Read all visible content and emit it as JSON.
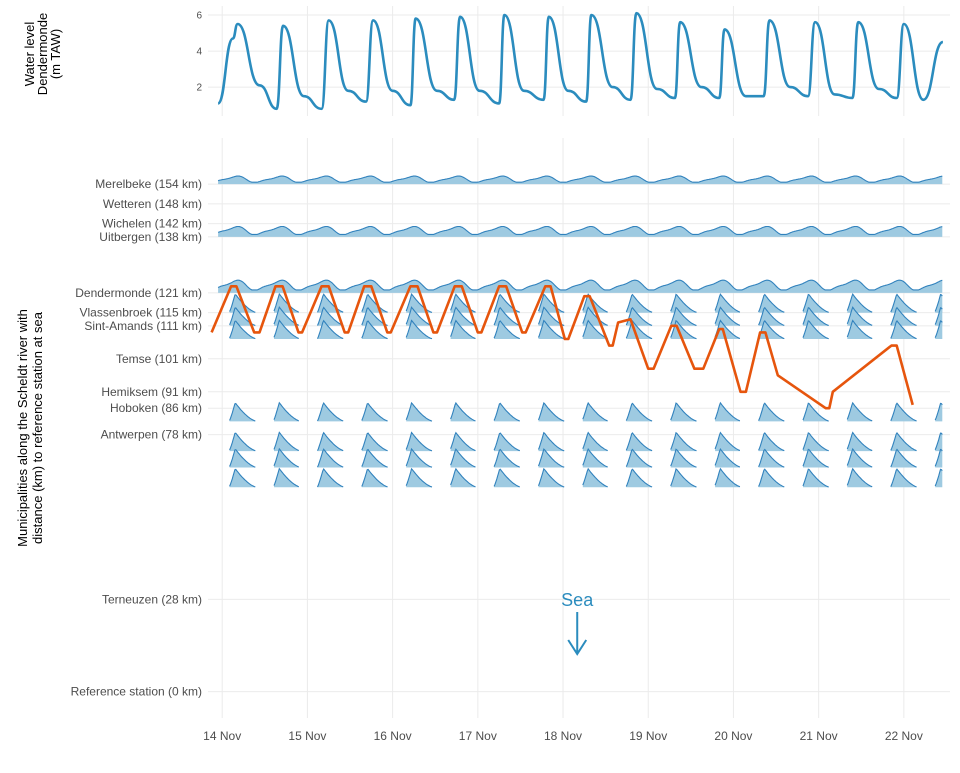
{
  "chart_data": [
    {
      "type": "line",
      "ylabel_lines": [
        "Water level",
        "Dendermonde",
        "(m TAW)"
      ],
      "ylim": [
        0.4,
        6.5
      ],
      "yticks": [
        "2",
        "4",
        "6"
      ],
      "ytick_values": [
        2,
        4,
        6
      ],
      "grid": true,
      "series": [
        {
          "color": "#2b8cbe",
          "x": [
            "13 Nov 22:50",
            "14 Nov 03:00",
            "14 Nov 04:20",
            "14 Nov 10:30",
            "14 Nov 15:20",
            "14 Nov 17:10",
            "14 Nov 23:00",
            "15 Nov 04:00",
            "15 Nov 06:00",
            "15 Nov 11:30",
            "15 Nov 16:30",
            "15 Nov 18:30",
            "16 Nov 00:00",
            "16 Nov 05:00",
            "16 Nov 06:30",
            "16 Nov 12:30",
            "16 Nov 17:20",
            "16 Nov 19:00",
            "17 Nov 00:30",
            "17 Nov 06:00",
            "17 Nov 07:30",
            "17 Nov 13:00",
            "17 Nov 18:30",
            "17 Nov 20:00",
            "18 Nov 01:30",
            "18 Nov 06:30",
            "18 Nov 08:00",
            "18 Nov 14:00",
            "18 Nov 19:00",
            "18 Nov 20:40",
            "19 Nov 02:30",
            "19 Nov 07:30",
            "19 Nov 09:00",
            "19 Nov 15:00",
            "19 Nov 20:00",
            "19 Nov 21:30",
            "20 Nov 03:30",
            "20 Nov 08:30",
            "20 Nov 10:10",
            "20 Nov 16:00",
            "20 Nov 21:00",
            "20 Nov 23:00",
            "21 Nov 04:30",
            "21 Nov 09:30",
            "21 Nov 11:10",
            "21 Nov 17:00",
            "21 Nov 22:00",
            "22 Nov 00:00",
            "22 Nov 05:30",
            "22 Nov 11:00"
          ],
          "y": [
            1.1,
            4.7,
            5.5,
            2.1,
            0.8,
            5.4,
            1.5,
            0.8,
            5.7,
            1.8,
            1.2,
            5.7,
            1.8,
            1.0,
            5.8,
            1.8,
            1.3,
            5.9,
            1.8,
            1.1,
            6.0,
            1.8,
            1.3,
            5.9,
            1.8,
            1.2,
            6.0,
            2.0,
            1.3,
            6.1,
            1.9,
            1.4,
            5.6,
            2.0,
            1.4,
            5.2,
            1.5,
            1.5,
            5.7,
            2.0,
            1.5,
            5.6,
            1.6,
            1.4,
            5.6,
            1.9,
            1.4,
            5.5,
            1.3,
            4.5
          ]
        }
      ]
    },
    {
      "type": "area",
      "ylabel_lines": [
        "Municipalities along the Scheldt river with",
        "distance (km) to reference station at sea"
      ],
      "ylim": [
        -8,
        168
      ],
      "x_range": [
        "13 Nov 20:00",
        "22 Nov 13:00"
      ],
      "xticks": [
        "14 Nov",
        "15 Nov",
        "16 Nov",
        "17 Nov",
        "18 Nov",
        "19 Nov",
        "20 Nov",
        "21 Nov",
        "22 Nov"
      ],
      "xtick_dates": [
        "14 Nov 00:00",
        "15 Nov 00:00",
        "16 Nov 00:00",
        "17 Nov 00:00",
        "18 Nov 00:00",
        "19 Nov 00:00",
        "20 Nov 00:00",
        "21 Nov 00:00",
        "22 Nov 00:00"
      ],
      "stations": [
        {
          "label": "Merelbeke (154 km)",
          "km": 154
        },
        {
          "label": "Wetteren (148 km)",
          "km": 148
        },
        {
          "label": "Wichelen (142 km)",
          "km": 142
        },
        {
          "label": "Uitbergen (138 km)",
          "km": 138
        },
        {
          "label": "Dendermonde (121 km)",
          "km": 121
        },
        {
          "label": "Vlassenbroek (115 km)",
          "km": 115
        },
        {
          "label": "Sint-Amands (111 km)",
          "km": 111
        },
        {
          "label": "Temse (101 km)",
          "km": 101
        },
        {
          "label": "Hemiksem (91 km)",
          "km": 91
        },
        {
          "label": "Hoboken (86 km)",
          "km": 86
        },
        {
          "label": "Antwerpen (78 km)",
          "km": 78
        },
        {
          "label": "Terneuzen (28 km)",
          "km": 28
        },
        {
          "label": "Reference station (0 km)",
          "km": 0
        }
      ],
      "ridges": [
        {
          "km": 154,
          "amplitude": 0.35,
          "style": "smooth",
          "continuous": true
        },
        {
          "km": 138,
          "amplitude": 0.45,
          "style": "smooth",
          "continuous": true
        },
        {
          "km": 121,
          "amplitude": 0.55,
          "style": "smooth",
          "continuous": true
        },
        {
          "km": 115,
          "amplitude": 0.85,
          "style": "peaked",
          "continuous": false
        },
        {
          "km": 111,
          "amplitude": 0.85,
          "style": "peaked",
          "continuous": false
        },
        {
          "km": 107,
          "amplitude": 0.85,
          "style": "peaked",
          "continuous": false
        },
        {
          "km": 82,
          "amplitude": 0.85,
          "style": "peaked",
          "continuous": false
        },
        {
          "km": 73,
          "amplitude": 0.85,
          "style": "peaked",
          "continuous": false
        },
        {
          "km": 68,
          "amplitude": 0.85,
          "style": "peaked",
          "continuous": false
        },
        {
          "km": 62,
          "amplitude": 0.85,
          "style": "peaked",
          "continuous": false
        }
      ],
      "track": {
        "color": "#e6550d",
        "points": [
          [
            "13 Nov 21:00",
            109
          ],
          [
            "14 Nov 02:30",
            123
          ],
          [
            "14 Nov 04:00",
            123
          ],
          [
            "14 Nov 09:00",
            109
          ],
          [
            "14 Nov 10:30",
            109
          ],
          [
            "14 Nov 15:00",
            123
          ],
          [
            "14 Nov 17:00",
            123
          ],
          [
            "14 Nov 21:30",
            109
          ],
          [
            "14 Nov 22:30",
            109
          ],
          [
            "15 Nov 04:00",
            123
          ],
          [
            "15 Nov 06:00",
            123
          ],
          [
            "15 Nov 10:30",
            109
          ],
          [
            "15 Nov 11:30",
            109
          ],
          [
            "15 Nov 16:00",
            123
          ],
          [
            "15 Nov 18:00",
            123
          ],
          [
            "15 Nov 22:30",
            109
          ],
          [
            "15 Nov 23:30",
            109
          ],
          [
            "16 Nov 05:00",
            123
          ],
          [
            "16 Nov 07:00",
            123
          ],
          [
            "16 Nov 11:30",
            109
          ],
          [
            "16 Nov 12:30",
            109
          ],
          [
            "16 Nov 17:30",
            123
          ],
          [
            "16 Nov 19:30",
            123
          ],
          [
            "17 Nov 00:00",
            109
          ],
          [
            "17 Nov 01:00",
            109
          ],
          [
            "17 Nov 06:00",
            123
          ],
          [
            "17 Nov 08:00",
            123
          ],
          [
            "17 Nov 12:30",
            109
          ],
          [
            "17 Nov 13:30",
            109
          ],
          [
            "17 Nov 19:00",
            123
          ],
          [
            "17 Nov 20:30",
            123
          ],
          [
            "18 Nov 00:30",
            107
          ],
          [
            "18 Nov 01:30",
            107
          ],
          [
            "18 Nov 06:00",
            120
          ],
          [
            "18 Nov 07:30",
            120
          ],
          [
            "18 Nov 13:00",
            105
          ],
          [
            "18 Nov 14:00",
            105
          ],
          [
            "18 Nov 15:30",
            112
          ],
          [
            "18 Nov 19:00",
            113
          ],
          [
            "19 Nov 00:00",
            98
          ],
          [
            "19 Nov 01:30",
            98
          ],
          [
            "19 Nov 06:30",
            111
          ],
          [
            "19 Nov 08:00",
            111
          ],
          [
            "19 Nov 13:00",
            98
          ],
          [
            "19 Nov 15:30",
            98
          ],
          [
            "19 Nov 20:00",
            110
          ],
          [
            "19 Nov 21:00",
            110
          ],
          [
            "20 Nov 02:00",
            91
          ],
          [
            "20 Nov 03:30",
            91
          ],
          [
            "20 Nov 07:30",
            109
          ],
          [
            "20 Nov 09:00",
            109
          ],
          [
            "20 Nov 12:30",
            96
          ],
          [
            "21 Nov 02:00",
            86
          ],
          [
            "21 Nov 03:00",
            86
          ],
          [
            "21 Nov 04:00",
            91
          ],
          [
            "21 Nov 20:30",
            105
          ],
          [
            "21 Nov 22:00",
            105
          ],
          [
            "22 Nov 02:30",
            87
          ]
        ]
      },
      "annotation": {
        "text": "Sea",
        "color": "#2b8cbe"
      }
    }
  ]
}
